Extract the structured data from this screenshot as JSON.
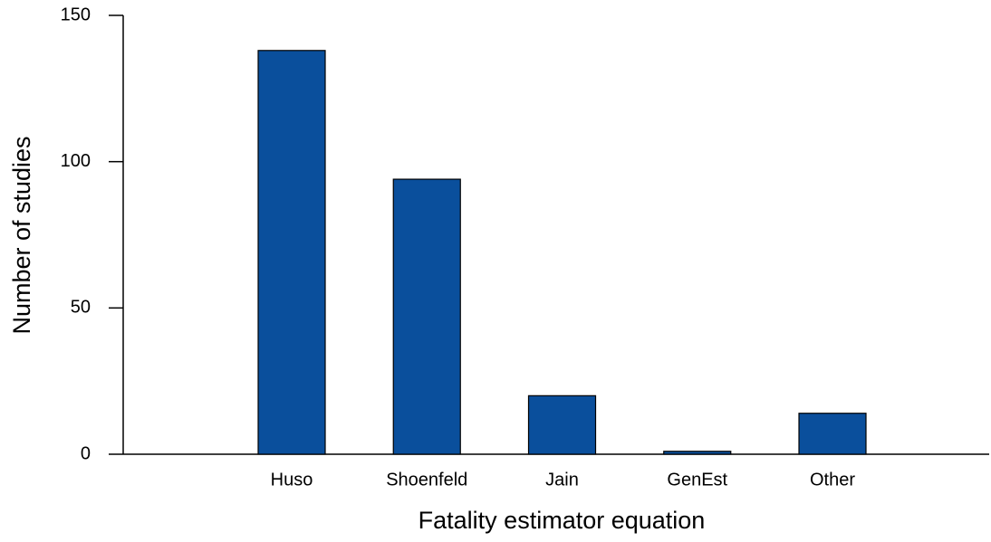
{
  "chart_data": {
    "type": "bar",
    "x_label": "Fatality estimator equation",
    "y_label": "Number of studies",
    "categories": [
      "Huso",
      "Shoenfeld",
      "Jain",
      "GenEst",
      "Other"
    ],
    "values": [
      138,
      94,
      20,
      1,
      14
    ],
    "color": "#0a4f9c",
    "ylim": [
      0,
      150
    ],
    "yticks": [
      0,
      50,
      100,
      150
    ],
    "grid": false
  }
}
